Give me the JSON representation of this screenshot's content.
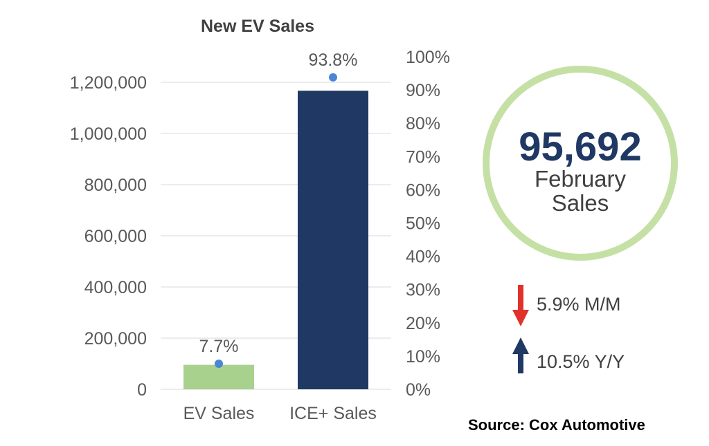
{
  "chart_data": {
    "type": "bar",
    "title": "New EV Sales",
    "categories": [
      "EV Sales",
      "ICE+ Sales"
    ],
    "series": [
      {
        "kind": "bar",
        "axis": "left",
        "values": [
          95692,
          1167000
        ],
        "colors": [
          "#a9d18e",
          "#203864"
        ]
      },
      {
        "kind": "point",
        "axis": "right",
        "values": [
          7.7,
          93.8
        ],
        "labels": [
          "7.7%",
          "93.8%"
        ],
        "color": "#4a86d4"
      }
    ],
    "left_axis": {
      "ylim": [
        0,
        1200000
      ],
      "ticks": [
        "0",
        "200,000",
        "400,000",
        "600,000",
        "800,000",
        "1,000,000",
        "1,200,000"
      ]
    },
    "right_axis": {
      "ylim": [
        0,
        100
      ],
      "ticks": [
        "0%",
        "10%",
        "20%",
        "30%",
        "40%",
        "50%",
        "60%",
        "70%",
        "80%",
        "90%",
        "100%"
      ]
    },
    "grid": true,
    "legend": "none"
  },
  "callout": {
    "value": "95,692",
    "label_line1": "February",
    "label_line2": "Sales",
    "ring_color": "#c5e0a5",
    "value_color": "#1f3864"
  },
  "changes": [
    {
      "direction": "down",
      "text": "5.9% M/M",
      "color": "#e0322a"
    },
    {
      "direction": "up",
      "text": "10.5% Y/Y",
      "color": "#203864"
    }
  ],
  "source": "Source: Cox Automotive"
}
